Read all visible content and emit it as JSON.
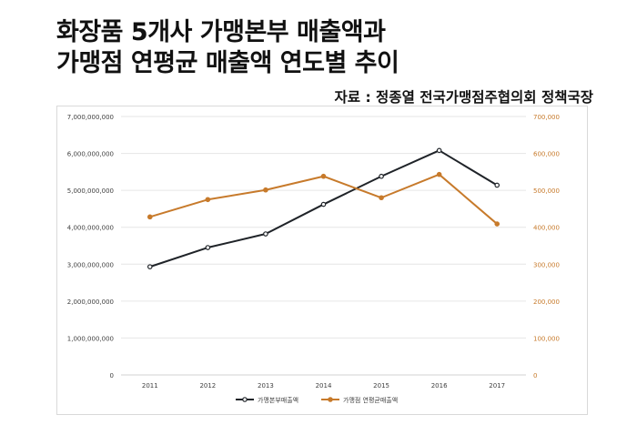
{
  "header": {
    "title_line1": "화장품 5개사 가맹본부 매출액과",
    "title_line2": "가맹점 연평균 매출액 연도별 추이",
    "source": "자료 : 정종열 전국가맹점주협의회 정책국장"
  },
  "colors": {
    "series1": "#1f2328",
    "series2": "#c77a2b",
    "left_axis_text": "#404040",
    "right_axis_text": "#c77a2b",
    "gridline": "#e6e6e6"
  },
  "chart_data": {
    "type": "line",
    "title": "",
    "xlabel": "",
    "ylabel": "",
    "categories": [
      "2011",
      "2012",
      "2013",
      "2014",
      "2015",
      "2016",
      "2017"
    ],
    "series": [
      {
        "name": "가맹본부매출액",
        "axis": "left",
        "color": "#1f2328",
        "values": [
          2930000000,
          3450000000,
          3820000000,
          4620000000,
          5380000000,
          6080000000,
          5140000000
        ]
      },
      {
        "name": "가맹점 연평균매출액",
        "axis": "right",
        "color": "#c77a2b",
        "values": [
          428000,
          475000,
          501000,
          538000,
          480000,
          543000,
          409000
        ]
      }
    ],
    "y_left": {
      "range": [
        0,
        7000000000
      ],
      "ticks": [
        "0",
        "1,000,000,000",
        "2,000,000,000",
        "3,000,000,000",
        "4,000,000,000",
        "5,000,000,000",
        "6,000,000,000",
        "7,000,000,000"
      ]
    },
    "y_right": {
      "range": [
        0,
        700000
      ],
      "ticks": [
        "0",
        "100,000",
        "200,000",
        "300,000",
        "400,000",
        "500,000",
        "600,000",
        "700,000"
      ]
    },
    "grid": true,
    "legend_position": "bottom"
  }
}
